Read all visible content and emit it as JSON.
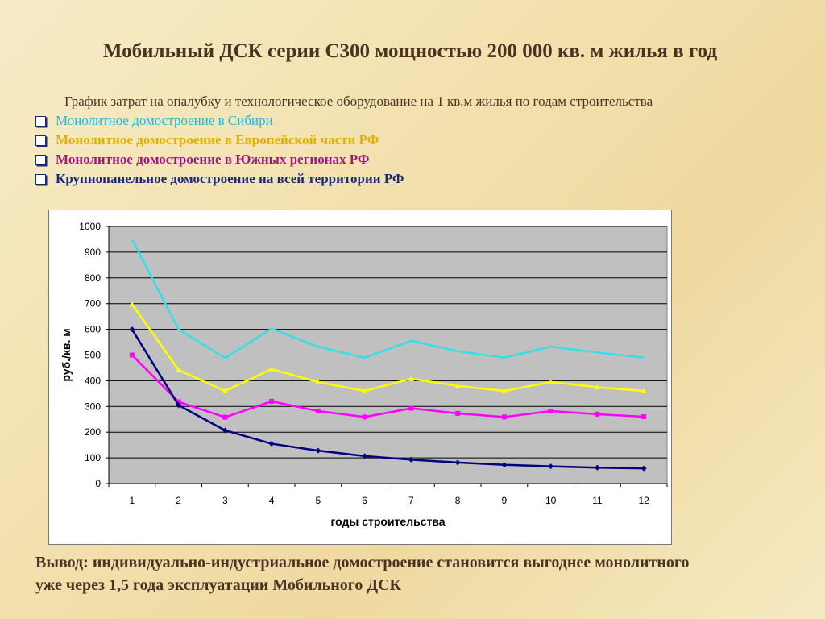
{
  "slide": {
    "title": "Мобильный ДСК серии С300 мощностью 200 000 кв. м жилья в год",
    "subtitle": "График затрат на опалубку и технологическое оборудование на 1 кв.м жилья по годам строительства",
    "conclusion_line1": "Вывод: индивидуально-индустриальное домостроение становится выгоднее монолитного",
    "conclusion_line2": "уже через 1,5 года эксплуатации Мобильного ДСК"
  },
  "legend": [
    {
      "label": "Монолитное домостроение в Сибири",
      "color": "#1fb8dc",
      "bold": false
    },
    {
      "label": "Монолитное домостроение в Европейской части РФ",
      "color": "#e0b000",
      "bold": true
    },
    {
      "label": "Монолитное домостроение в Южных регионах РФ",
      "color": "#a01880",
      "bold": true
    },
    {
      "label": "Крупнопанельное домостроение на всей территории РФ",
      "color": "#1a2a7a",
      "bold": true
    }
  ],
  "chart_data": {
    "type": "line",
    "x": [
      1,
      2,
      3,
      4,
      5,
      6,
      7,
      8,
      9,
      10,
      11,
      12
    ],
    "xlabel": "годы строительства",
    "ylabel": "руб./кв. м",
    "ylim": [
      0,
      1000
    ],
    "yticks": [
      0,
      100,
      200,
      300,
      400,
      500,
      600,
      700,
      800,
      900,
      1000
    ],
    "grid": true,
    "legend": "none",
    "series": [
      {
        "line_color": "#33e0e8",
        "marker": "none",
        "values": [
          950,
          600,
          488,
          603,
          532,
          490,
          555,
          515,
          490,
          532,
          510,
          490
        ]
      },
      {
        "line_color": "#ffff00",
        "marker": "triangle",
        "values": [
          698,
          442,
          360,
          445,
          395,
          360,
          408,
          380,
          360,
          395,
          375,
          360
        ]
      },
      {
        "line_color": "#ff00ff",
        "marker": "square",
        "values": [
          500,
          318,
          258,
          320,
          282,
          259,
          293,
          273,
          259,
          282,
          270,
          260
        ]
      },
      {
        "line_color": "#000080",
        "marker": "diamond",
        "values": [
          600,
          305,
          207,
          155,
          128,
          107,
          93,
          82,
          73,
          67,
          62,
          59
        ]
      }
    ]
  }
}
